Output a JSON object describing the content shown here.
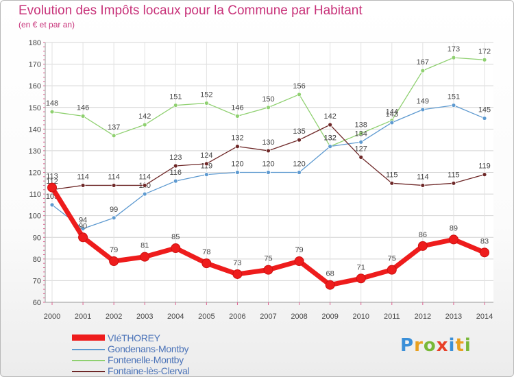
{
  "header": {
    "title": "Evolution des Impôts locaux pour la Commune par Habitant",
    "subtitle": "(en € et par an)"
  },
  "logo": {
    "letters": [
      "P",
      "r",
      "o",
      "x",
      "i",
      "t",
      "i"
    ],
    "colors": [
      "#3a8fd8",
      "#e8a020",
      "#78b838",
      "#e84028",
      "#3a8fd8",
      "#e8a020",
      "#78b838"
    ]
  },
  "chart_data": {
    "type": "line",
    "title": "Evolution des Impôts locaux pour la Commune par Habitant",
    "subtitle": "(en € et par an)",
    "xlabel": "",
    "ylabel": "",
    "ylim": [
      60,
      180
    ],
    "yticks": [
      60,
      70,
      80,
      90,
      100,
      110,
      120,
      130,
      140,
      150,
      160,
      170,
      180
    ],
    "x": [
      "2000",
      "2001",
      "2002",
      "2003",
      "2004",
      "2005",
      "2006",
      "2007",
      "2008",
      "2009",
      "2010",
      "2011",
      "2012",
      "2013",
      "2014"
    ],
    "grid": true,
    "legend_position": "bottom-left",
    "series": [
      {
        "name": "Fontenelle-Montby",
        "color": "#8fd070",
        "values": [
          148,
          146,
          137,
          142,
          151,
          152,
          146,
          150,
          156,
          132,
          138,
          144,
          167,
          173,
          172
        ],
        "labels": [
          "148",
          "146",
          "137",
          "142",
          "151",
          "152",
          "146",
          "150",
          "156",
          "132",
          "138",
          "144",
          "167",
          "173",
          "172"
        ]
      },
      {
        "name": "Gondenans-Montby",
        "color": "#5e9ad0",
        "values": [
          105,
          94,
          99,
          110,
          116,
          119,
          120,
          120,
          120,
          132,
          134,
          143,
          149,
          151,
          145
        ],
        "labels": [
          "105",
          "94",
          "99",
          "110",
          "116",
          "119",
          "120",
          "120",
          "120",
          "132",
          "134",
          "143",
          "149",
          "151",
          "145"
        ]
      },
      {
        "name": "Fontaine-lès-Clerval",
        "color": "#6e2828",
        "values": [
          112,
          114,
          114,
          114,
          123,
          124,
          132,
          130,
          135,
          142,
          127,
          115,
          114,
          115,
          119
        ],
        "labels": [
          "112",
          "114",
          "114",
          "114",
          "123",
          "124",
          "132",
          "130",
          "135",
          "142",
          "127",
          "115",
          "114",
          "115",
          "119"
        ]
      },
      {
        "name": "VIéTHOREY",
        "color": "#ee1c1c",
        "values": [
          113,
          90,
          79,
          81,
          85,
          78,
          73,
          75,
          79,
          68,
          71,
          75,
          86,
          89,
          83
        ],
        "labels": [
          "113",
          "90",
          "79",
          "81",
          "85",
          "78",
          "73",
          "75",
          "79",
          "68",
          "71",
          "75",
          "86",
          "89",
          "83"
        ]
      }
    ],
    "legend": [
      "VIéTHOREY",
      "Gondenans-Montby",
      "Fontenelle-Montby",
      "Fontaine-lès-Clerval"
    ]
  }
}
